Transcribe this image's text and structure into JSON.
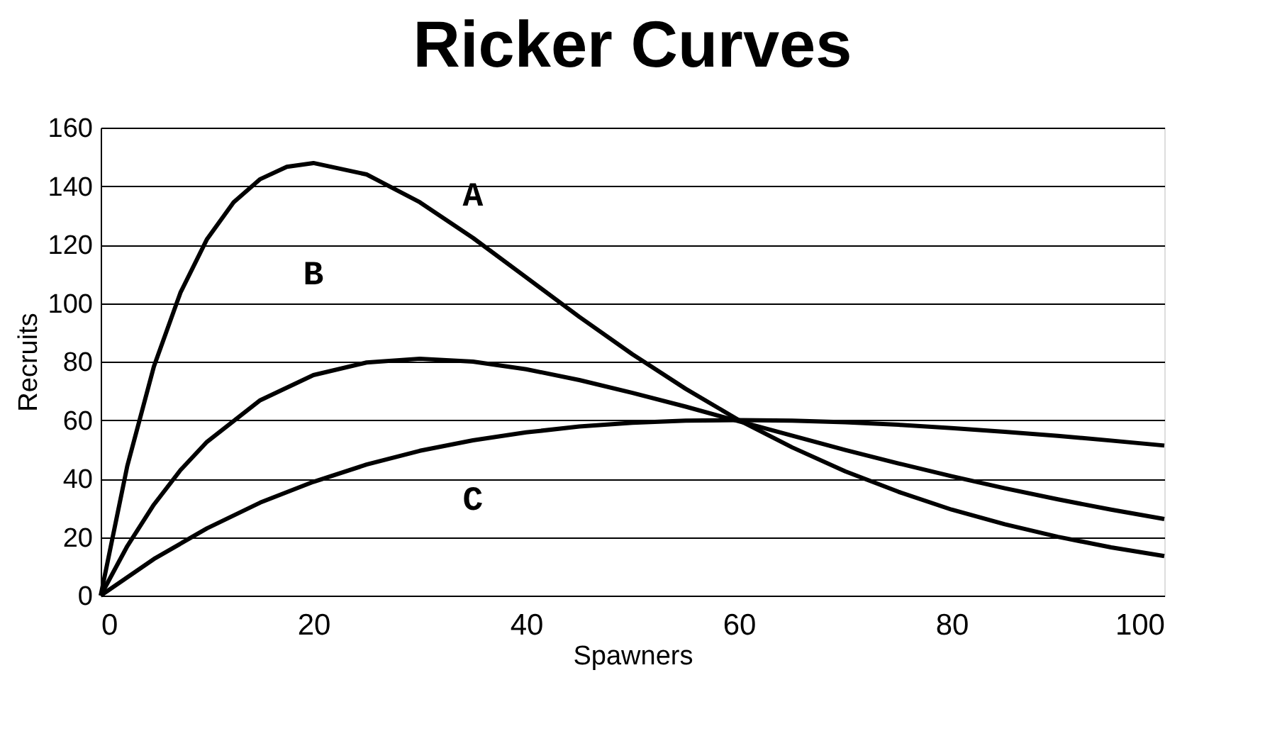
{
  "chart_data": {
    "type": "line",
    "title": "Ricker Curves",
    "xlabel": "Spawners",
    "ylabel": "Recruits",
    "xlim": [
      0,
      100
    ],
    "xticks": [
      0,
      20,
      40,
      60,
      80,
      100
    ],
    "ylim": [
      0,
      160
    ],
    "yticks": [
      0,
      20,
      40,
      60,
      80,
      100,
      120,
      140,
      160
    ],
    "grid": "y",
    "legend": false,
    "marker": "none",
    "line_style": "solid",
    "series": [
      {
        "name": "A",
        "color": "#000000",
        "x": [
          0,
          2.5,
          5,
          7.5,
          10,
          12.5,
          15,
          17.5,
          20,
          25,
          30,
          35,
          40,
          45,
          50,
          55,
          60,
          65,
          70,
          75,
          80,
          85,
          90,
          95,
          100
        ],
        "values": [
          0,
          44.3,
          78.3,
          103.6,
          121.9,
          134.5,
          142.4,
          146.6,
          147.9,
          144.0,
          134.5,
          122.3,
          108.8,
          95.3,
          82.5,
          70.7,
          60.0,
          50.7,
          42.5,
          35.5,
          29.4,
          24.4,
          20.1,
          16.5,
          13.5
        ]
      },
      {
        "name": "B",
        "color": "#000000",
        "x": [
          0,
          2.5,
          5,
          7.5,
          10,
          15,
          20,
          25,
          30,
          35,
          40,
          45,
          50,
          55,
          60,
          65,
          70,
          75,
          80,
          85,
          90,
          95,
          100
        ],
        "values": [
          0,
          16.9,
          31.1,
          42.9,
          52.6,
          66.8,
          75.4,
          79.7,
          81.0,
          80.0,
          77.4,
          73.7,
          69.3,
          64.6,
          59.6,
          54.7,
          49.8,
          45.2,
          40.8,
          36.7,
          32.9,
          29.4,
          26.2
        ]
      },
      {
        "name": "C",
        "color": "#000000",
        "x": [
          0,
          5,
          10,
          15,
          20,
          25,
          30,
          35,
          40,
          45,
          50,
          55,
          60,
          65,
          70,
          75,
          80,
          85,
          90,
          95,
          100
        ],
        "values": [
          0,
          12.5,
          23.0,
          31.8,
          38.9,
          44.8,
          49.5,
          53.1,
          55.8,
          57.8,
          59.1,
          59.8,
          60.0,
          59.8,
          59.3,
          58.4,
          57.3,
          56.0,
          54.6,
          53.0,
          51.3
        ]
      }
    ]
  }
}
